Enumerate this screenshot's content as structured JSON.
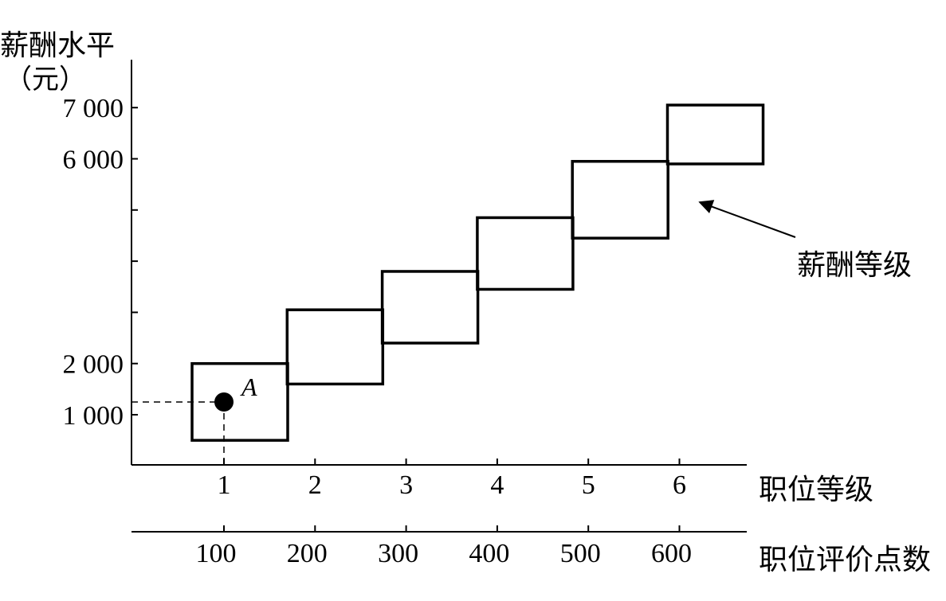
{
  "chart_data": {
    "type": "other",
    "ylabel": "薪酬水平",
    "yunit": "（元）",
    "xlabel": "职位等级",
    "x2label": "职位评价点数",
    "y_ticks": [
      {
        "value": 0,
        "label": ""
      },
      {
        "value": 1000,
        "label": "1 000"
      },
      {
        "value": 2000,
        "label": "2 000"
      },
      {
        "value": 3000,
        "label": ""
      },
      {
        "value": 4000,
        "label": ""
      },
      {
        "value": 5000,
        "label": ""
      },
      {
        "value": 6000,
        "label": "6 000"
      },
      {
        "value": 7000,
        "label": "7 000"
      }
    ],
    "ylim": [
      -1000,
      8000
    ],
    "grades": [
      "1",
      "2",
      "3",
      "4",
      "5",
      "6"
    ],
    "points_ticks": [
      "100",
      "200",
      "300",
      "400",
      "500",
      "600"
    ],
    "bands": [
      {
        "grade": "1",
        "min": 500,
        "max": 2000
      },
      {
        "grade": "2",
        "min": 1600,
        "max": 3050
      },
      {
        "grade": "3",
        "min": 2400,
        "max": 3800
      },
      {
        "grade": "4",
        "min": 3450,
        "max": 4850
      },
      {
        "grade": "5",
        "min": 4450,
        "max": 5950
      },
      {
        "grade": "6",
        "min": 5900,
        "max": 7050
      }
    ],
    "point": {
      "label": "A",
      "grade": "1",
      "salary": 1250
    },
    "annotation": "薪酬等级",
    "grid": false,
    "legend": "none"
  }
}
